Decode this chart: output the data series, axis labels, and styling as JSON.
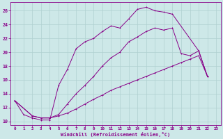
{
  "xlabel": "Windchill (Refroidissement éolien,°C)",
  "bg_color": "#cde8e8",
  "line_color": "#880088",
  "grid_color": "#b0d0d0",
  "xlim": [
    -0.5,
    23.5
  ],
  "ylim": [
    9.5,
    27.2
  ],
  "xticks": [
    0,
    1,
    2,
    3,
    4,
    5,
    6,
    7,
    8,
    9,
    10,
    11,
    12,
    13,
    14,
    15,
    16,
    17,
    18,
    19,
    20,
    21,
    22,
    23
  ],
  "yticks": [
    10,
    12,
    14,
    16,
    18,
    20,
    22,
    24,
    26
  ],
  "curve1_x": [
    0,
    1,
    2,
    3,
    4,
    5,
    6,
    7,
    8,
    9,
    10,
    11,
    12,
    13,
    14,
    15,
    16,
    17,
    18,
    21,
    22
  ],
  "curve1_y": [
    13,
    11,
    10.5,
    10.2,
    10.2,
    15.2,
    17.5,
    20.5,
    21.5,
    22.0,
    23.0,
    23.8,
    23.5,
    24.8,
    26.2,
    26.5,
    26.0,
    25.8,
    25.5,
    20.2,
    16.5
  ],
  "curve2_x": [
    0,
    2,
    3,
    4,
    5,
    6,
    7,
    8,
    9,
    10,
    11,
    12,
    13,
    14,
    15,
    16,
    17,
    18,
    19,
    20,
    21,
    22
  ],
  "curve2_y": [
    13,
    10.8,
    10.5,
    10.5,
    11.0,
    12.5,
    14.0,
    15.2,
    16.5,
    18.0,
    19.2,
    20.0,
    21.5,
    22.2,
    23.0,
    23.5,
    23.2,
    23.5,
    19.8,
    19.5,
    20.2,
    16.5
  ],
  "curve3_x": [
    0,
    2,
    3,
    4,
    5,
    6,
    7,
    8,
    9,
    10,
    11,
    12,
    13,
    14,
    15,
    16,
    17,
    18,
    19,
    20,
    21,
    22
  ],
  "curve3_y": [
    13,
    10.8,
    10.5,
    10.5,
    10.8,
    11.2,
    11.8,
    12.5,
    13.2,
    13.8,
    14.5,
    15.0,
    15.5,
    16.0,
    16.5,
    17.0,
    17.5,
    18.0,
    18.5,
    19.0,
    19.5,
    16.5
  ]
}
